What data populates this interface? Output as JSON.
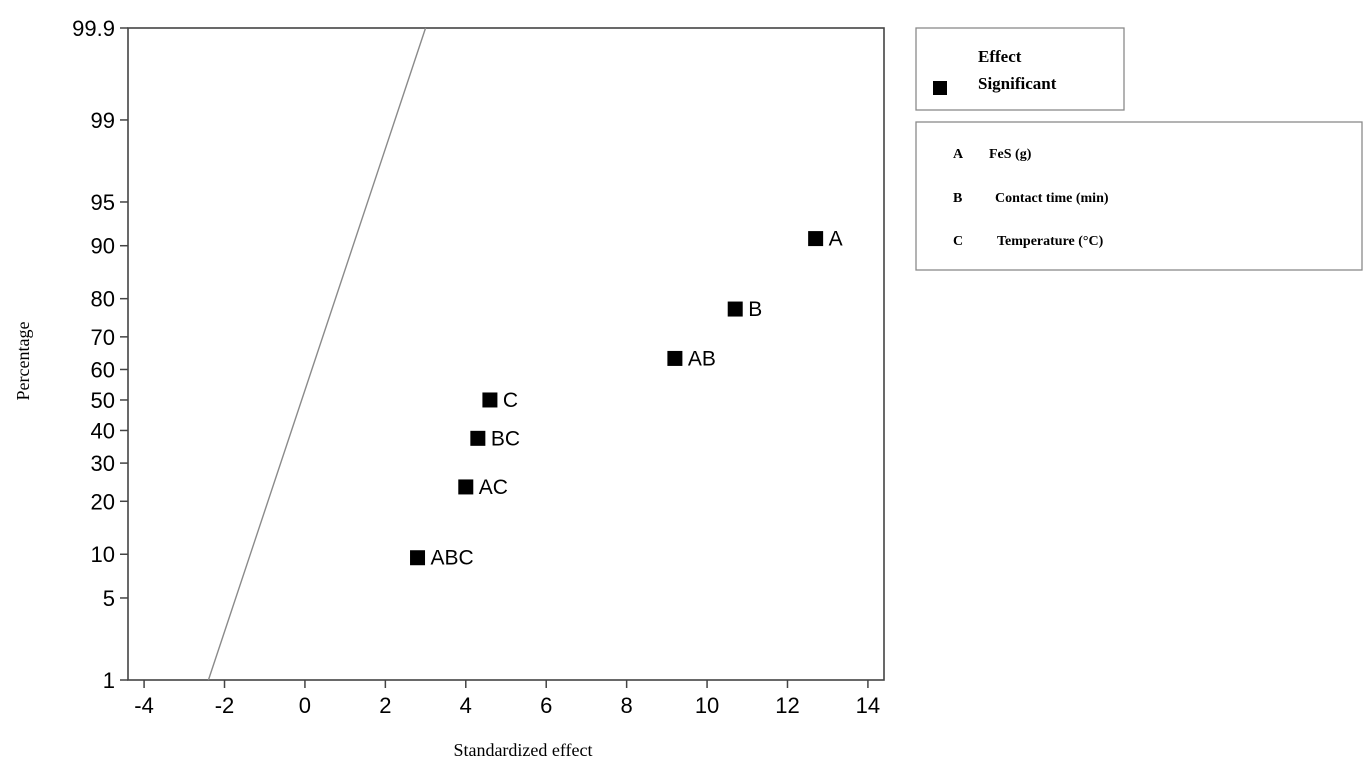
{
  "chart_data": {
    "type": "scatter",
    "xlabel": "Standardized effect",
    "ylabel": "Percentage",
    "xlim": [
      -4.4,
      14.4
    ],
    "x_ticks": [
      -4,
      -2,
      0,
      2,
      4,
      6,
      8,
      10,
      12,
      14
    ],
    "y_scale": "normal-probability",
    "ylim": [
      1,
      99.9
    ],
    "y_ticks": [
      1,
      5,
      10,
      20,
      30,
      40,
      50,
      60,
      70,
      80,
      90,
      95,
      99,
      99.9
    ],
    "y_tick_labels": [
      "1",
      "5",
      "10",
      "20",
      "30",
      "40",
      "50",
      "60",
      "70",
      "80",
      "90",
      "95",
      "99",
      "99.9"
    ],
    "grid": false,
    "reference_line": {
      "points": [
        {
          "x": -2.4,
          "y": 1
        },
        {
          "x": 3.0,
          "y": 99.9
        }
      ],
      "color": "#8a8a8a"
    },
    "points": [
      {
        "label": "ABC",
        "x": 2.8,
        "y": 9.5
      },
      {
        "label": "AC",
        "x": 4.0,
        "y": 23.5
      },
      {
        "label": "BC",
        "x": 4.3,
        "y": 37.5
      },
      {
        "label": "C",
        "x": 4.6,
        "y": 50
      },
      {
        "label": "AB",
        "x": 9.2,
        "y": 63.5
      },
      {
        "label": "B",
        "x": 10.7,
        "y": 77.5
      },
      {
        "label": "A",
        "x": 12.7,
        "y": 91
      }
    ],
    "point_color": "#000000",
    "legend": {
      "placement": "right",
      "title": "Effect",
      "entries": [
        {
          "marker": "filled-square",
          "label": "Significant"
        }
      ],
      "factors": [
        {
          "key": "A",
          "name": "FeS (g)"
        },
        {
          "key": "B",
          "name": "Contact time (min)"
        },
        {
          "key": "C",
          "name": "Temperature (°C)"
        }
      ]
    }
  }
}
